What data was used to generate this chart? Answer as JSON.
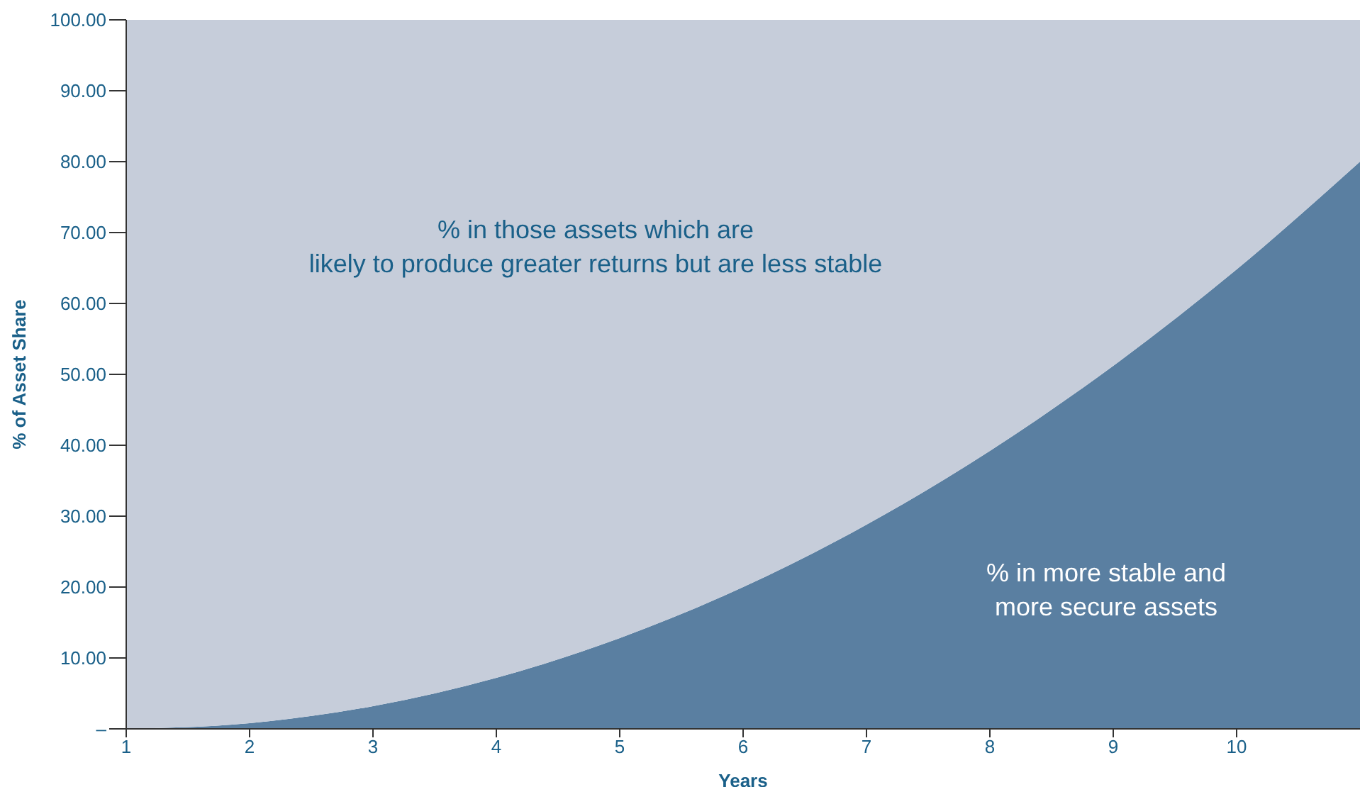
{
  "chart_data": {
    "type": "area",
    "stacked": true,
    "xlabel": "Years",
    "ylabel": "% of Asset Share",
    "x": [
      1,
      2,
      3,
      4,
      5,
      6,
      7,
      8,
      9,
      10,
      11
    ],
    "series": [
      {
        "name": "% in more stable and\nmore secure assets",
        "color": "#5a7fa1",
        "values": [
          0,
          0.8,
          3.2,
          7.2,
          12.8,
          20,
          28.8,
          39.2,
          51.2,
          64.8,
          80
        ]
      },
      {
        "name": "% in those assets which are\nlikely to produce greater returns but are less stable",
        "color": "#c6cdda",
        "values": [
          100,
          99.2,
          96.8,
          92.8,
          87.2,
          80,
          71.2,
          60.8,
          48.8,
          35.2,
          20
        ]
      }
    ],
    "xlim": [
      1,
      11
    ],
    "xticks": [
      1,
      2,
      3,
      4,
      5,
      6,
      7,
      8,
      9,
      10
    ],
    "ylim": [
      0,
      100
    ],
    "yticks": [
      {
        "value": 0,
        "label": "–"
      },
      {
        "value": 10,
        "label": "10.00"
      },
      {
        "value": 20,
        "label": "20.00"
      },
      {
        "value": 30,
        "label": "30.00"
      },
      {
        "value": 40,
        "label": "40.00"
      },
      {
        "value": 50,
        "label": "50.00"
      },
      {
        "value": 60,
        "label": "60.00"
      },
      {
        "value": 70,
        "label": "70.00"
      },
      {
        "value": 80,
        "label": "80.00"
      },
      {
        "value": 90,
        "label": "90.00"
      },
      {
        "value": 100,
        "label": "100.00"
      }
    ]
  }
}
